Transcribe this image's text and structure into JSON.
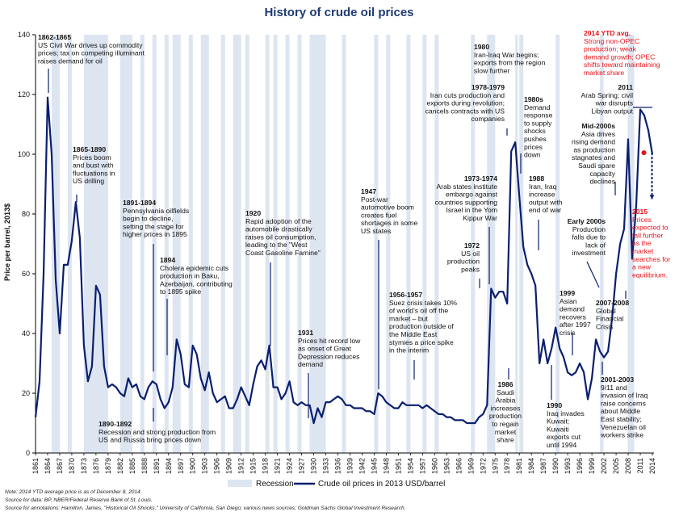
{
  "chart_data": {
    "type": "line",
    "title": "History of crude oil prices",
    "ylabel": "Price per barrel, 2013$",
    "ylim": [
      0,
      140
    ],
    "yticks": [
      0,
      20,
      40,
      60,
      80,
      100,
      120,
      140
    ],
    "xlim": [
      1861,
      2014
    ],
    "xticks": [
      1861,
      1864,
      1867,
      1870,
      1873,
      1876,
      1879,
      1882,
      1885,
      1888,
      1891,
      1894,
      1897,
      1900,
      1903,
      1906,
      1909,
      1912,
      1915,
      1918,
      1921,
      1924,
      1927,
      1930,
      1933,
      1936,
      1939,
      1942,
      1945,
      1948,
      1951,
      1954,
      1957,
      1960,
      1963,
      1966,
      1969,
      1972,
      1975,
      1978,
      1981,
      1984,
      1987,
      1990,
      1993,
      1996,
      1999,
      2002,
      2005,
      2008,
      2011,
      2014
    ],
    "legend": [
      "Recession",
      "Crude oil prices in 2013 USD/barrel"
    ],
    "legend_position": "bottom",
    "series": [
      {
        "name": "Crude oil prices in 2013 USD/barrel",
        "color": "#0a1f6e",
        "x": [
          1861,
          1862,
          1863,
          1864,
          1865,
          1866,
          1867,
          1868,
          1869,
          1870,
          1871,
          1872,
          1873,
          1874,
          1875,
          1876,
          1877,
          1878,
          1879,
          1880,
          1881,
          1882,
          1883,
          1884,
          1885,
          1886,
          1887,
          1888,
          1889,
          1890,
          1891,
          1892,
          1893,
          1894,
          1895,
          1896,
          1897,
          1898,
          1899,
          1900,
          1901,
          1902,
          1903,
          1904,
          1905,
          1906,
          1907,
          1908,
          1909,
          1910,
          1911,
          1912,
          1913,
          1914,
          1915,
          1916,
          1917,
          1918,
          1919,
          1920,
          1921,
          1922,
          1923,
          1924,
          1925,
          1926,
          1927,
          1928,
          1929,
          1930,
          1931,
          1932,
          1933,
          1934,
          1935,
          1936,
          1937,
          1938,
          1939,
          1940,
          1941,
          1942,
          1943,
          1944,
          1945,
          1946,
          1947,
          1948,
          1949,
          1950,
          1951,
          1952,
          1953,
          1954,
          1955,
          1956,
          1957,
          1958,
          1959,
          1960,
          1961,
          1962,
          1963,
          1964,
          1965,
          1966,
          1967,
          1968,
          1969,
          1970,
          1971,
          1972,
          1973,
          1974,
          1975,
          1976,
          1977,
          1978,
          1979,
          1980,
          1981,
          1982,
          1983,
          1984,
          1985,
          1986,
          1987,
          1988,
          1989,
          1990,
          1991,
          1992,
          1993,
          1994,
          1995,
          1996,
          1997,
          1998,
          1999,
          2000,
          2001,
          2002,
          2003,
          2004,
          2005,
          2006,
          2007,
          2008,
          2009,
          2010,
          2011,
          2012,
          2013,
          2014
        ],
        "y": [
          12,
          24,
          60,
          119,
          100,
          58,
          40,
          63,
          63,
          71,
          84,
          72,
          36,
          24,
          29,
          56,
          53,
          29,
          22,
          23,
          22,
          20,
          19,
          25,
          22,
          23,
          19,
          18,
          22,
          24,
          23,
          18,
          15,
          17,
          22,
          38,
          33,
          23,
          22,
          36,
          33,
          25,
          21,
          27,
          20,
          17,
          18,
          19,
          15,
          15,
          18,
          22,
          19,
          16,
          23,
          29,
          31,
          28,
          36,
          22,
          22,
          18,
          20,
          24,
          17,
          16,
          17,
          16,
          16,
          10,
          15,
          12,
          17,
          17,
          18,
          19,
          18,
          16,
          16,
          15,
          15,
          15,
          14,
          14,
          13,
          20,
          19,
          17,
          16,
          15,
          15,
          17,
          16,
          16,
          16,
          16,
          15,
          16,
          15,
          14,
          13,
          13,
          12,
          12,
          11,
          11,
          11,
          10,
          10,
          10,
          12,
          13,
          16,
          55,
          52,
          54,
          54,
          50,
          101,
          104,
          86,
          69,
          63,
          60,
          56,
          30,
          38,
          30,
          35,
          42,
          35,
          32,
          27,
          26,
          27,
          30,
          27,
          18,
          25,
          38,
          34,
          32,
          34,
          45,
          60,
          70,
          75,
          105,
          65,
          83,
          115,
          113,
          108,
          100
        ]
      }
    ],
    "recessions": [
      [
        1865,
        1867
      ],
      [
        1869,
        1870
      ],
      [
        1873,
        1879
      ],
      [
        1882,
        1885
      ],
      [
        1887,
        1888
      ],
      [
        1890,
        1891
      ],
      [
        1893,
        1894
      ],
      [
        1895,
        1897
      ],
      [
        1899,
        1900
      ],
      [
        1902,
        1904
      ],
      [
        1907,
        1908
      ],
      [
        1910,
        1912
      ],
      [
        1913,
        1914
      ],
      [
        1918,
        1919
      ],
      [
        1920,
        1921
      ],
      [
        1923,
        1924
      ],
      [
        1926,
        1927
      ],
      [
        1929,
        1933
      ],
      [
        1937,
        1938
      ],
      [
        1945,
        1946
      ],
      [
        1948,
        1949
      ],
      [
        1953,
        1954
      ],
      [
        1957,
        1958
      ],
      [
        1960,
        1961
      ],
      [
        1969,
        1970
      ],
      [
        1973,
        1975
      ],
      [
        1980,
        1980.6
      ],
      [
        1981,
        1982
      ],
      [
        1990,
        1991
      ],
      [
        2001,
        2001.9
      ],
      [
        2007.9,
        2009.5
      ]
    ],
    "red_marker": {
      "x": 2011.9,
      "y": 100.5
    },
    "forecast_arrow": {
      "x": 2013.9,
      "y1": 100.5,
      "y2": 85
    },
    "annotations": [
      {
        "lines": [
          "1862-1865",
          "US Civil War drives up commodity",
          "prices; tax on competing illuminant",
          "raises demand for oil"
        ],
        "bold_first": true,
        "align": "start",
        "color": "black"
      },
      {
        "lines": [
          "1865-1890",
          "Prices boom",
          "and bust with",
          "fluctuations in",
          "US drilling"
        ],
        "bold_first": true,
        "align": "start",
        "color": "black"
      },
      {
        "lines": [
          "1891-1894",
          "Pennsylvania oilfields",
          "begin to decline,",
          "setting the stage for",
          "higher prices in 1895"
        ],
        "bold_first": true,
        "align": "start",
        "color": "black"
      },
      {
        "lines": [
          "1894",
          "Cholera epidemic cuts",
          "production in Baku,",
          "Azerbaijan, contributing",
          "to 1895 spike"
        ],
        "bold_first": true,
        "align": "start",
        "color": "black"
      },
      {
        "lines": [
          "1890-1892",
          "Recession and strong production from",
          "US and Russia bring prices down"
        ],
        "bold_first": true,
        "align": "start",
        "color": "black"
      },
      {
        "lines": [
          "1920",
          "Rapid adoption of the",
          "automobile drastically",
          "raises oil consumption,",
          "leading to the \"West",
          "Coast Gasoline Famine\""
        ],
        "bold_first": true,
        "align": "start",
        "color": "black"
      },
      {
        "lines": [
          "1931",
          "Prices hit record low",
          "as onset of Great",
          "Depression reduces",
          "demand"
        ],
        "bold_first": true,
        "align": "start",
        "color": "black"
      },
      {
        "lines": [
          "1947",
          "Post-war",
          "automotive boom",
          "creates fuel",
          "shortages in some",
          "US states"
        ],
        "bold_first": true,
        "align": "start",
        "color": "black"
      },
      {
        "lines": [
          "1956-1957",
          "Suez crisis takes 10%",
          "of world's oil off the",
          "market – but",
          "production outside of",
          "the Middle East",
          "stymies a price spike",
          "in the interim"
        ],
        "bold_first": true,
        "align": "start",
        "color": "black"
      },
      {
        "lines": [
          "1973-1974",
          "Arab states institute",
          "embargo against",
          "countries supporting",
          "Israel in the Yom",
          "Kippur War"
        ],
        "bold_first": true,
        "align": "end",
        "color": "black"
      },
      {
        "lines": [
          "1972",
          "US oil",
          "production",
          "peaks"
        ],
        "bold_first": true,
        "align": "end",
        "color": "black"
      },
      {
        "lines": [
          "1978-1979",
          "Iran cuts production and",
          "exports during revolution;",
          "cancels contracts with US",
          "companies"
        ],
        "bold_first": true,
        "align": "end",
        "color": "black"
      },
      {
        "lines": [
          "1980",
          "Iran-Iraq War begins;",
          "exports from the region",
          "slow further"
        ],
        "bold_first": true,
        "align": "start",
        "color": "black"
      },
      {
        "lines": [
          "1980s",
          "Demand",
          "response",
          "to supply",
          "shocks",
          "pushes",
          "prices",
          "down"
        ],
        "bold_first": true,
        "align": "start",
        "color": "black"
      },
      {
        "lines": [
          "1988",
          "Iran, Iraq",
          "increase",
          "output with",
          "end of war"
        ],
        "bold_first": true,
        "align": "start",
        "color": "black"
      },
      {
        "lines": [
          "1986",
          "Saudi",
          "Arabia",
          "increases",
          "production",
          "to regain",
          "market",
          "share"
        ],
        "bold_first": true,
        "align": "middle",
        "color": "black"
      },
      {
        "lines": [
          "1990",
          "Iraq invades",
          "Kuwait;",
          "Kuwaiti",
          "exports cut",
          "until 1994"
        ],
        "bold_first": true,
        "align": "start",
        "color": "black"
      },
      {
        "lines": [
          "1999",
          "Asian",
          "demand",
          "recovers",
          "after 1997",
          "crisis"
        ],
        "bold_first": true,
        "align": "start",
        "color": "black"
      },
      {
        "lines": [
          "Early 2000s",
          "Production",
          "falls due to",
          "lack of",
          "investment"
        ],
        "bold_first": true,
        "align": "end",
        "color": "black"
      },
      {
        "lines": [
          "Mid-2000s",
          "Asia drives",
          "rising demand",
          "as production",
          "stagnates and",
          "Saudi spare",
          "capacity",
          "declines"
        ],
        "bold_first": true,
        "align": "end",
        "color": "black"
      },
      {
        "lines": [
          "2011",
          "Arab Spring; civil",
          "war disrupts",
          "Libyan output"
        ],
        "bold_first": true,
        "align": "end",
        "color": "black"
      },
      {
        "lines": [
          "2014 YTD avg.",
          "Strong non-OPEC",
          "production; weak",
          "demand growth; OPEC",
          "shifts toward maintaining",
          "market share"
        ],
        "bold_first": true,
        "align": "start",
        "color": "red"
      },
      {
        "lines": [
          "2015",
          "Prices",
          "expected to",
          "fall further",
          "as the",
          "market",
          "searches for",
          "a new",
          "equilibrium."
        ],
        "bold_first": true,
        "align": "start",
        "color": "red"
      },
      {
        "lines": [
          "2007-2008",
          "Global",
          "Financial",
          "Crisis"
        ],
        "bold_first": true,
        "align": "start",
        "color": "black"
      },
      {
        "lines": [
          "2001-2003",
          "9/11 and",
          "invasion of Iraq",
          "raise concerns",
          "about Middle",
          "East stability;",
          "Venezuelan oil",
          "workers strike"
        ],
        "bold_first": true,
        "align": "start",
        "color": "black"
      }
    ]
  },
  "colors": {
    "line": "#0a1f6e",
    "recession": "#dde5f1",
    "title": "#1f3b73",
    "red": "#e8141b"
  },
  "notes": [
    "Note: 2014 YTD average price is as of December 8, 2014.",
    "Source for data: BP, NBER/Federal Reserve Bank of St. Louis.",
    "Source for annotations: Hamilton, James, \"Historical Oil Shocks,\" University of California, San Diego; various news sources; Goldman Sachs Global Investment Research."
  ]
}
